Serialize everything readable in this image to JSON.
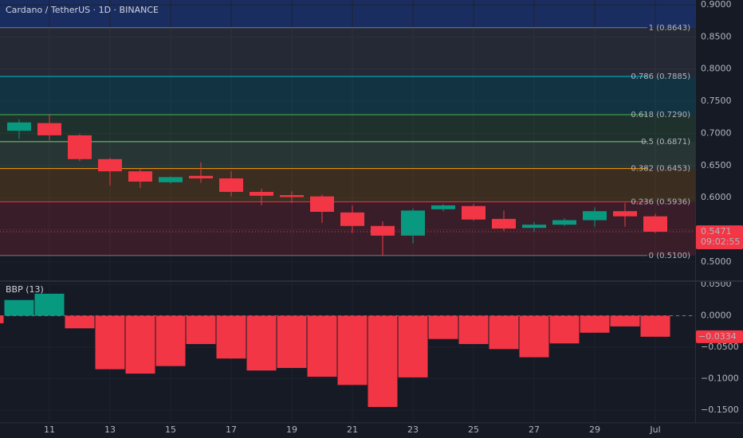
{
  "chart_data": [
    {
      "type": "candlestick",
      "title": "Cardano / TetherUS · 1D · BINANCE",
      "categories": [
        null,
        null,
        "11",
        null,
        "13",
        null,
        "15",
        null,
        "17",
        null,
        "19",
        null,
        "21",
        null,
        "23",
        null,
        "25",
        null,
        "27",
        null,
        "29",
        null,
        "Jul"
      ],
      "open": [
        null,
        0.704,
        0.716,
        0.697,
        0.66,
        0.641,
        0.624,
        0.634,
        0.63,
        0.609,
        0.604,
        0.602,
        0.577,
        0.556,
        0.541,
        0.582,
        0.587,
        0.567,
        0.553,
        0.558,
        0.565,
        0.579,
        0.571
      ],
      "high": [
        null,
        0.722,
        0.73,
        0.699,
        0.662,
        0.645,
        0.633,
        0.655,
        0.641,
        0.614,
        0.61,
        0.605,
        0.588,
        0.563,
        0.583,
        0.59,
        0.59,
        0.58,
        0.562,
        0.568,
        0.585,
        0.592,
        0.575
      ],
      "low": [
        null,
        0.691,
        0.689,
        0.657,
        0.619,
        0.615,
        0.622,
        0.623,
        0.602,
        0.588,
        0.592,
        0.561,
        0.545,
        0.51,
        0.529,
        0.579,
        0.564,
        0.548,
        0.547,
        0.556,
        0.555,
        0.555,
        0.545
      ],
      "close": [
        null,
        0.717,
        0.697,
        0.66,
        0.641,
        0.625,
        0.632,
        0.63,
        0.609,
        0.603,
        0.601,
        0.578,
        0.556,
        0.541,
        0.58,
        0.588,
        0.566,
        0.552,
        0.558,
        0.565,
        0.579,
        0.571,
        0.5471
      ],
      "up_color": "#089981",
      "down_color": "#f23645",
      "countdown": "09:02:55",
      "ylim": [
        0.4715,
        0.9074
      ],
      "yticks": [
        {
          "value": 0.9,
          "label": "0.9000"
        },
        {
          "value": 0.85,
          "label": "0.8500"
        },
        {
          "value": 0.8,
          "label": "0.8000"
        },
        {
          "value": 0.75,
          "label": "0.7500"
        },
        {
          "value": 0.7,
          "label": "0.7000"
        },
        {
          "value": 0.65,
          "label": "0.6500"
        },
        {
          "value": 0.6,
          "label": "0.6000"
        },
        {
          "value": 0.55,
          "label": "0.5500"
        },
        {
          "value": 0.5,
          "label": "0.5000"
        }
      ],
      "fib_levels": [
        {
          "label": "1 (0.8643)",
          "value": 0.8643,
          "color": "#787b86"
        },
        {
          "label": "0.786 (0.7885)",
          "value": 0.7885,
          "color": "#00bcd4"
        },
        {
          "label": "0.618 (0.7290)",
          "value": 0.729,
          "color": "#4caf50"
        },
        {
          "label": "0.5 (0.6871)",
          "value": 0.6871,
          "color": "#81c784"
        },
        {
          "label": "0.382 (0.6453)",
          "value": 0.6453,
          "color": "#ff9800"
        },
        {
          "label": "0.236 (0.5936)",
          "value": 0.5936,
          "color": "#f23645"
        },
        {
          "label": "0 (0.5100)",
          "value": 0.51,
          "color": "#787b86"
        }
      ]
    },
    {
      "type": "bar",
      "title": "BBP (13)",
      "values": [
        -0.012,
        0.025,
        0.035,
        -0.02,
        -0.085,
        -0.092,
        -0.08,
        -0.045,
        -0.068,
        -0.087,
        -0.083,
        -0.097,
        -0.11,
        -0.145,
        -0.098,
        -0.037,
        -0.045,
        -0.053,
        -0.066,
        -0.044,
        -0.027,
        -0.017,
        -0.0334
      ],
      "last_value_label": "−0.0334",
      "up_color": "#089981",
      "down_color": "#f23645",
      "ylim": [
        -0.169,
        0.0525
      ],
      "yticks": [
        {
          "value": 0.05,
          "label": "0.0500"
        },
        {
          "value": 0,
          "label": "0.0000"
        },
        {
          "value": -0.05,
          "label": "−0.0500"
        },
        {
          "value": -0.1,
          "label": "−0.1000"
        },
        {
          "value": -0.15,
          "label": "−0.1500"
        }
      ]
    }
  ]
}
